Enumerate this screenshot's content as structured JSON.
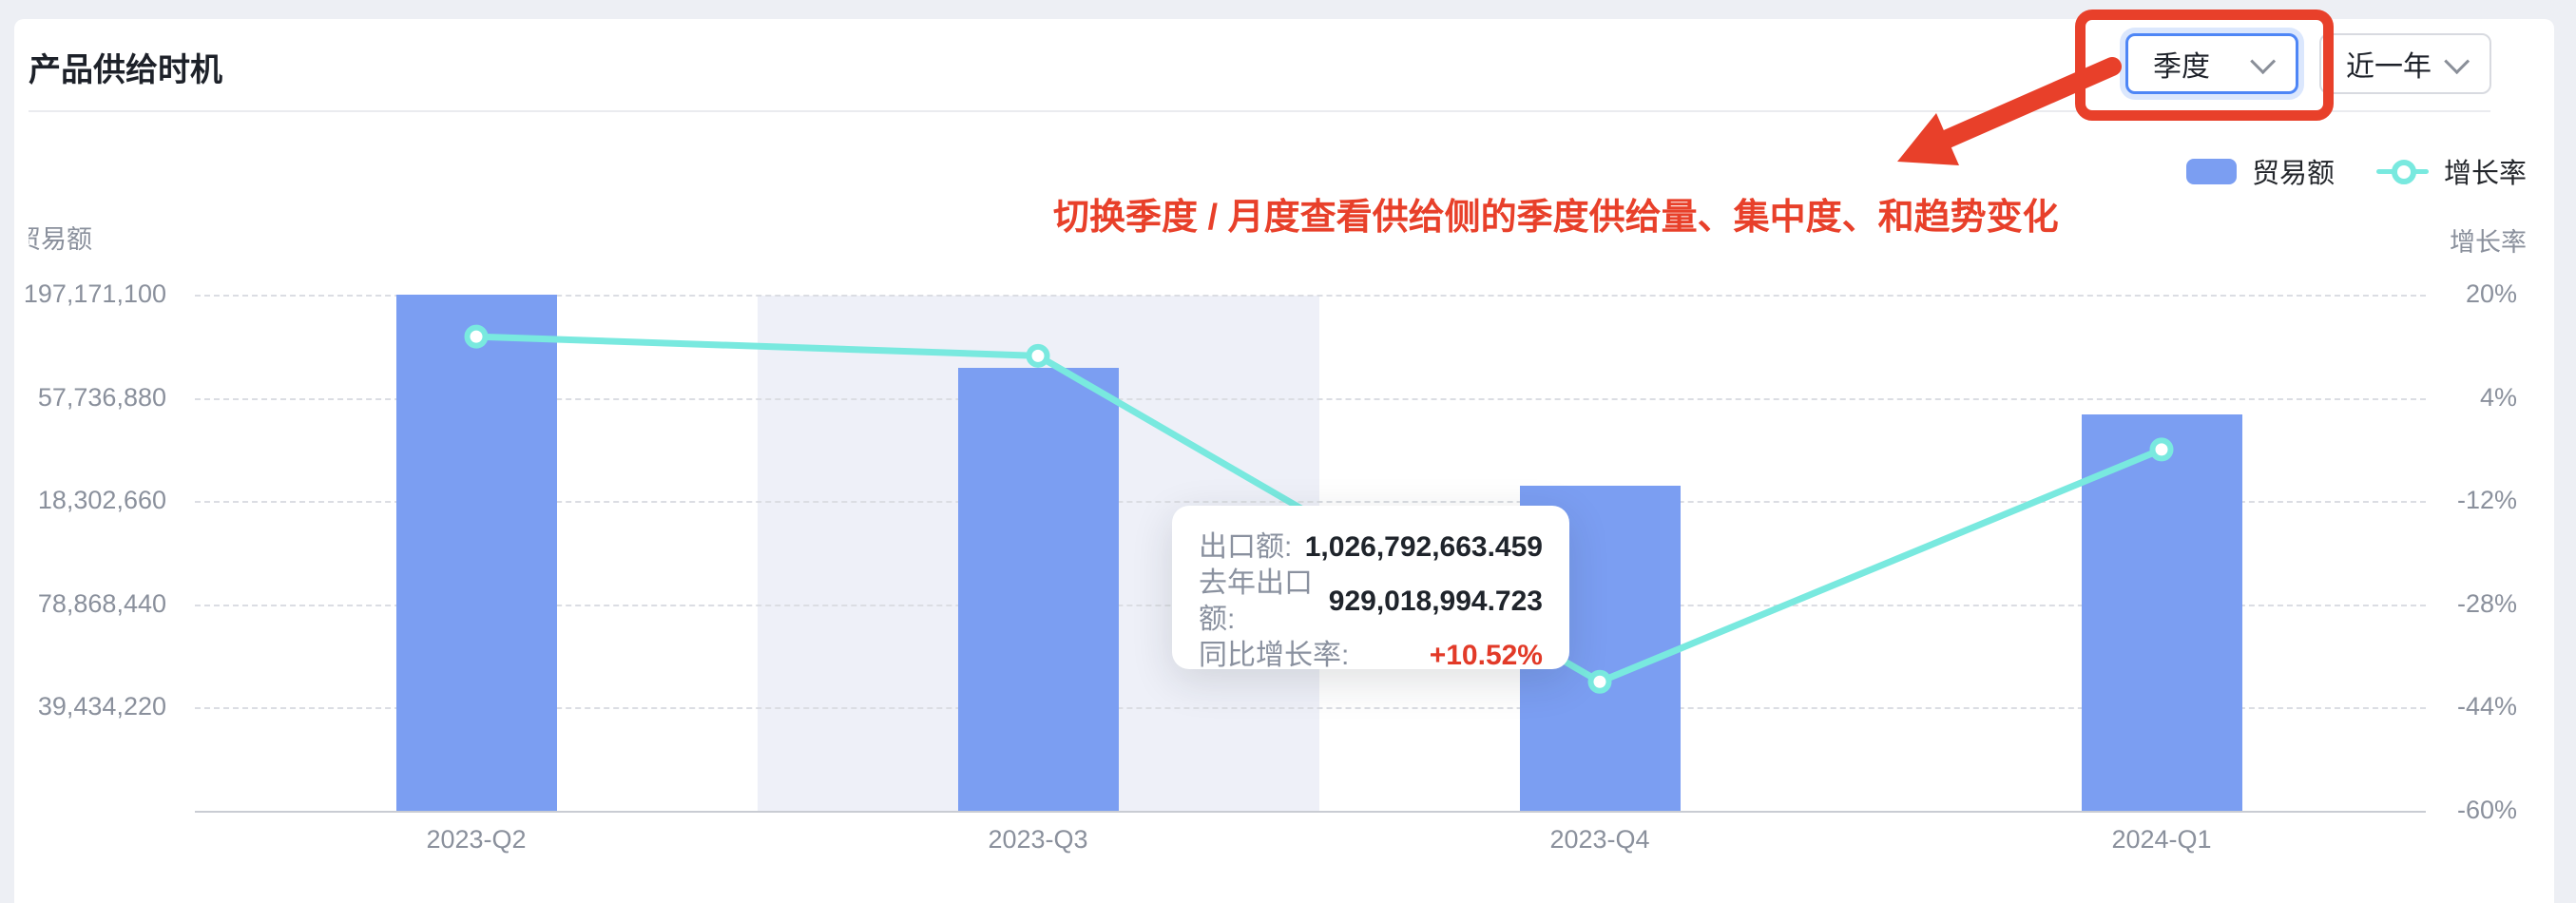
{
  "page": {
    "title": "产品供给时机"
  },
  "controls": {
    "granularity_select": {
      "value": "季度"
    },
    "range_select": {
      "value": "近一年"
    }
  },
  "annotation": {
    "text": "切换季度 / 月度查看供给侧的季度供给量、集中度、和趋势变化",
    "color": "#E8402A"
  },
  "legend": [
    {
      "label": "贸易额",
      "type": "bar",
      "color": "#7B9EF2"
    },
    {
      "label": "增长率",
      "type": "line",
      "color": "#79E9DF"
    }
  ],
  "tooltip": {
    "rows": [
      {
        "label": "出口额:",
        "value": "1,026,792,663.459",
        "highlight": false
      },
      {
        "label": "去年出口额:",
        "value": "929,018,994.723",
        "highlight": false
      },
      {
        "label": "同比增长率:",
        "value": "+10.52%",
        "highlight": true
      }
    ]
  },
  "chart_data": {
    "type": "bar+line",
    "categories": [
      "2023-Q2",
      "2023-Q3",
      "2023-Q4",
      "2024-Q1"
    ],
    "series": [
      {
        "name": "贸易额",
        "type": "bar",
        "axis": "left",
        "color": "#7B9EF2",
        "values_relative_height": [
          1.0,
          0.858,
          0.63,
          0.768
        ]
      },
      {
        "name": "增长率",
        "type": "line",
        "axis": "right",
        "unit": "%",
        "color": "#79E9DF",
        "values": [
          13.5,
          10.52,
          -40,
          -4
        ]
      }
    ],
    "left_axis": {
      "title": "贸易额",
      "ticks": [
        "197,171,100",
        "57,736,880",
        "18,302,660",
        "78,868,440",
        "39,434,220"
      ]
    },
    "right_axis": {
      "title": "增长率",
      "ticks": [
        "20%",
        "4%",
        "-12%",
        "-28%",
        "-44%",
        "-60%"
      ],
      "range": [
        -60,
        20
      ]
    },
    "highlight_category": "2023-Q3",
    "grid": "dashed-horizontal",
    "legend_position": "top-right"
  }
}
